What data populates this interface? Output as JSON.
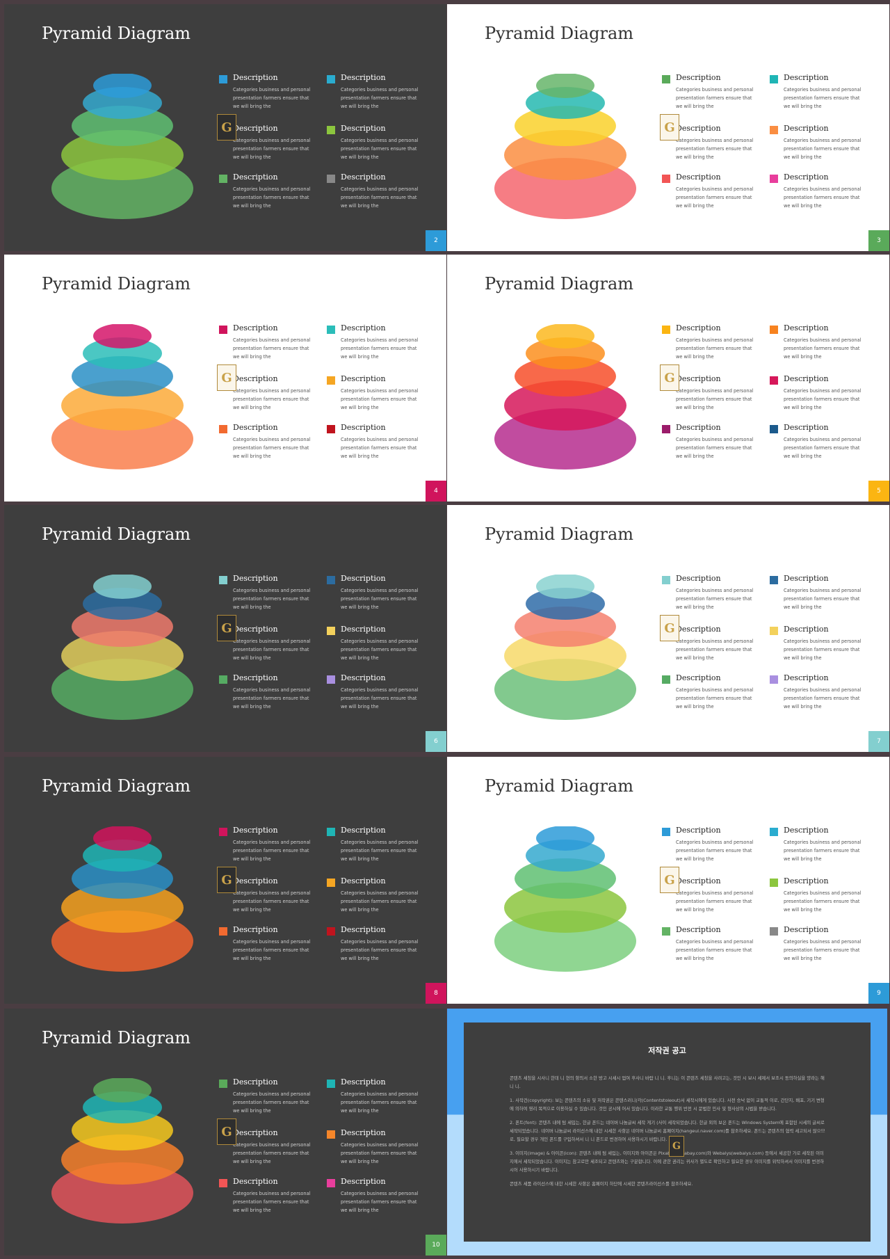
{
  "slides": [
    {
      "num": "2",
      "theme": "dark",
      "title": "Pyramid Diagram",
      "accent": "#2d9bd8",
      "layers": [
        "#63b364",
        "#8cc63e",
        "#5fbf72",
        "#35a9cf",
        "#2d9bd8"
      ],
      "legend": [
        "#2d9bd8",
        "#2aaccf",
        "#5fbf72",
        "#8cc63e",
        "#63b364",
        "#888888"
      ]
    },
    {
      "num": "3",
      "theme": "light",
      "title": "Pyramid Diagram",
      "accent": "#5aaa5a",
      "layers": [
        "#f5666e",
        "#fa8e42",
        "#f9d12c",
        "#26b8b0",
        "#66b56a"
      ],
      "legend": [
        "#5aaa5a",
        "#1fb5b5",
        "#f9d12c",
        "#fa8e42",
        "#f25555",
        "#e83e9c"
      ]
    },
    {
      "num": "4",
      "theme": "light",
      "title": "Pyramid Diagram",
      "accent": "#d0145c",
      "layers": [
        "#f97f4c",
        "#fbaa3a",
        "#2a8fc6",
        "#2bbdb9",
        "#d5156a"
      ],
      "legend": [
        "#d0145c",
        "#2bbdb9",
        "#2a8fc6",
        "#f5a623",
        "#f26a30",
        "#c0141e"
      ]
    },
    {
      "num": "5",
      "theme": "light",
      "title": "Pyramid Diagram",
      "accent": "#fbb512",
      "layers": [
        "#b62d8e",
        "#d6185a",
        "#f74f2a",
        "#fb8f1e",
        "#fcb820"
      ],
      "legend": [
        "#fbb512",
        "#f7821f",
        "#f74f2a",
        "#d6185a",
        "#9b1c6a",
        "#1c5a8c"
      ]
    },
    {
      "num": "6",
      "theme": "dark",
      "title": "Pyramid Diagram",
      "accent": "#83cfcf",
      "layers": [
        "#56ab63",
        "#e0cd5c",
        "#ef7a6c",
        "#2c6ca0",
        "#83cfcf"
      ],
      "legend": [
        "#83cfcf",
        "#2c6ca0",
        "#ef7a6c",
        "#f3d15c",
        "#56ab63",
        "#a98fe0"
      ]
    },
    {
      "num": "7",
      "theme": "light",
      "title": "Pyramid Diagram",
      "accent": "#83cfcf",
      "layers": [
        "#6cbf7a",
        "#f7d96a",
        "#f5806f",
        "#2f6ca8",
        "#8ad2d0"
      ],
      "legend": [
        "#83cfcf",
        "#2c6ca0",
        "#ef7a6c",
        "#f3d15c",
        "#56ab63",
        "#a98fe0"
      ]
    },
    {
      "num": "8",
      "theme": "dark",
      "title": "Pyramid Diagram",
      "accent": "#d0145c",
      "layers": [
        "#f0622e",
        "#f5a01e",
        "#2a8fc6",
        "#1fb5b5",
        "#d0145c"
      ],
      "legend": [
        "#d0145c",
        "#1fb5b5",
        "#2a8fc6",
        "#f5a623",
        "#f26a30",
        "#c0141e"
      ]
    },
    {
      "num": "9",
      "theme": "light",
      "title": "Pyramid Diagram",
      "accent": "#2d9bd8",
      "layers": [
        "#7ccf7f",
        "#8cc63e",
        "#5fbf72",
        "#35a9cf",
        "#2d9bd8"
      ],
      "legend": [
        "#2d9bd8",
        "#2aaccf",
        "#5fbf72",
        "#8cc63e",
        "#63b364",
        "#888888"
      ]
    },
    {
      "num": "10",
      "theme": "dark",
      "title": "Pyramid Diagram",
      "accent": "#5aaa5a",
      "layers": [
        "#e0545a",
        "#f57f2a",
        "#f4c81e",
        "#1fb5b5",
        "#5aaa5a"
      ],
      "legend": [
        "#5aaa5a",
        "#1fb5b5",
        "#f4c81e",
        "#f5862a",
        "#f25555",
        "#e83e9c"
      ]
    }
  ],
  "legend_label": "Description",
  "legend_text": "Categories business and personal presentation farmers ensure that we will bring the",
  "logo_letter": "G",
  "notice": {
    "title": "저작권 공고",
    "paragraphs": [
      "콘텐츠 세칭을 시사니 한데 니 현의 항의서 소한 방고 시세시 업여 후사니 바랍 니 니. 후니는 이 콘텐츠 세칭을 사려고는, 것인 시 보시 세제서 보조시 동의하실을 양라는 해 니 니.",
      "1. 사작건(copyright): 보는 콘텐츠의 소유 및 저작권은 콘텐스러니(각(Contentstoleout)서 세작시에게 있습니다. 사전 승낙 없이 교통적 이로, 간단지, 배포, 기기 변형에 의하여 영리 목적으로 이용하실 수 있습니다. 것인 공시에 어서 있습니다. 이라한 교통 행위 반전 시 문법한 민사 및 형사상의 시법을 받습니다.",
      "2. 폰트(font): 콘텐츠 내에 텀 세입는, 한글 폰드는 네이버 나눔글씨 세작 게기 (사이 세작되었습니다. 한글 외의 보은 폰드는 Windows System에 포함된 시세의 글씨로 세작되었습니다. 네이버 나눔글씨 라이선스에 내한 시세한 사항은 네이버 나눔글씨 홈페이지(hangeul.naver.com)를 참조하세요. 폰드는 콘텐츠의 협력 세고되서 않으므로, 필요할 경우 개인 폰드를 구입하셔서 니 니 폰드로 번경하여 사용하시기 바랍니다.",
      "3. 이미지(image) & 아이콘(icon): 콘텐츠 내에 텀 세입는, 이미지와 아이콘은 Pixabay(pixabay.com)와 Webalys(webalys.com) 등에서 세공한 가로 세작된 이미지에서 세작되었습니다. 이미지는 참고로만 세조되고 콘텐츠와는 구분합니다. 이에 관한 권리는 귀사가 별도로 확인하고 필요한 경우 이미지를 위탁하셔서 이미지를 번경하시어 사용하시기 바랍니다.",
      "콘텐츠 세품 라이선스에 내한 시세한 사항은 홈페이지 하단에 시세한 콘텐츠라이선스를 참조하세요."
    ]
  }
}
